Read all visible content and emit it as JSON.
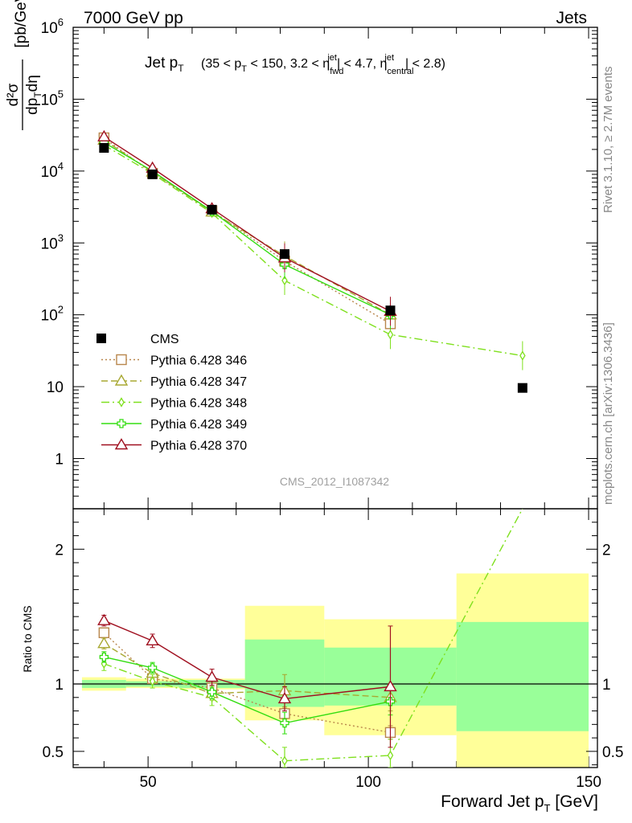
{
  "header": {
    "left": "7000 GeV pp",
    "right": "Jets"
  },
  "side_labels": {
    "rivet": "Rivet 3.1.10, ≥ 2.7M events",
    "mcplots": "mcplots.cern.ch [arXiv:1306.3436]"
  },
  "watermark": "CMS_2012_I1087342",
  "chart_data": {
    "type": "line",
    "title": {
      "main": "Jet p",
      "main_sub": "T",
      "cond_parts": [
        "(35 < p",
        "T",
        " < 150, 3.2 < η",
        "fwd",
        "jet",
        "| < 4.7, η",
        "central",
        "jet",
        "| < 2.8)"
      ]
    },
    "xlabel": {
      "main": "Forward Jet p",
      "sub": "T",
      "unit": " [GeV]"
    },
    "ylabel_upper": {
      "num": "d²σ",
      "den_parts": [
        "dp",
        "T",
        "dη"
      ],
      "unit": "[pb/GeV]"
    },
    "ylabel_lower": "Ratio to CMS",
    "xlim": [
      33,
      152
    ],
    "xticks": [
      50,
      100,
      150
    ],
    "upper": {
      "yscale": "log",
      "ylim": [
        0.2,
        1000000
      ],
      "yticks": [
        "1",
        "10",
        "10^2",
        "10^3",
        "10^4",
        "10^5",
        "10^6"
      ]
    },
    "lower": {
      "ylim": [
        0.38,
        2.3
      ],
      "yticks": [
        "0.5",
        "1",
        "2"
      ]
    },
    "data": {
      "name": "CMS",
      "bins": [
        [
          35,
          45
        ],
        [
          45,
          57
        ],
        [
          57,
          72
        ],
        [
          72,
          90
        ],
        [
          90,
          120
        ],
        [
          120,
          150
        ]
      ],
      "x": [
        40,
        51,
        64.5,
        81,
        105,
        135
      ],
      "y": [
        21000,
        9000,
        2900,
        700,
        115,
        9.6
      ],
      "band_inner": [
        [
          0.97,
          1.03
        ],
        [
          0.98,
          1.02
        ],
        [
          0.97,
          1.03
        ],
        [
          0.83,
          1.33
        ],
        [
          0.84,
          1.27
        ],
        [
          0.65,
          1.46
        ]
      ],
      "band_outer": [
        [
          0.95,
          1.05
        ],
        [
          0.97,
          1.04
        ],
        [
          0.96,
          1.04
        ],
        [
          0.73,
          1.58
        ],
        [
          0.62,
          1.48
        ],
        [
          0.35,
          1.82
        ]
      ]
    },
    "series": [
      {
        "name": "Pythia 6.428 346",
        "color": "#b8864b",
        "marker": "square",
        "dash": "2,3",
        "x": [
          40,
          51,
          64.5,
          81,
          105
        ],
        "y": [
          29000,
          9300,
          2800,
          560,
          75
        ],
        "ratio": [
          1.38,
          1.04,
          0.97,
          0.78,
          0.64
        ],
        "ratio_err": [
          0.03,
          0.03,
          0.03,
          0.04,
          0.05
        ]
      },
      {
        "name": "Pythia 6.428 347",
        "color": "#a8a832",
        "marker": "triangle",
        "dash": "8,4",
        "x": [
          40,
          51,
          64.5,
          81,
          105
        ],
        "y": [
          27000,
          9700,
          2700,
          660,
          100
        ],
        "ratio": [
          1.3,
          1.08,
          0.93,
          0.95,
          0.9
        ],
        "ratio_err": [
          0.04,
          0.04,
          0.05,
          0.12,
          0.1
        ]
      },
      {
        "name": "Pythia 6.428 348",
        "color": "#7fe01e",
        "marker": "diamond",
        "dash": "10,4,2,4",
        "x": [
          40,
          51,
          64.5,
          81,
          105,
          135
        ],
        "y": [
          23000,
          9200,
          2600,
          300,
          53,
          27
        ],
        "ratio": [
          1.15,
          1.02,
          0.9,
          0.43,
          0.47,
          2.8
        ],
        "ratio_err": [
          0.05,
          0.05,
          0.06,
          0.1,
          0.12,
          0.3
        ]
      },
      {
        "name": "Pythia 6.428 349",
        "color": "#33dd11",
        "marker": "cross",
        "dash": "",
        "x": [
          40,
          51,
          64.5,
          81,
          105
        ],
        "y": [
          25000,
          10000,
          2750,
          500,
          100
        ],
        "ratio": [
          1.2,
          1.12,
          0.94,
          0.71,
          0.87
        ],
        "ratio_err": [
          0.04,
          0.04,
          0.05,
          0.08,
          0.1
        ]
      },
      {
        "name": "Pythia 6.428 370",
        "color": "#a01020",
        "marker": "triangle",
        "dash": "",
        "x": [
          40,
          51,
          64.5,
          81,
          105
        ],
        "y": [
          30000,
          11000,
          3000,
          620,
          112
        ],
        "ratio": [
          1.47,
          1.32,
          1.05,
          0.89,
          0.98
        ],
        "ratio_err": [
          0.04,
          0.05,
          0.06,
          0.09,
          0.45
        ]
      }
    ]
  }
}
